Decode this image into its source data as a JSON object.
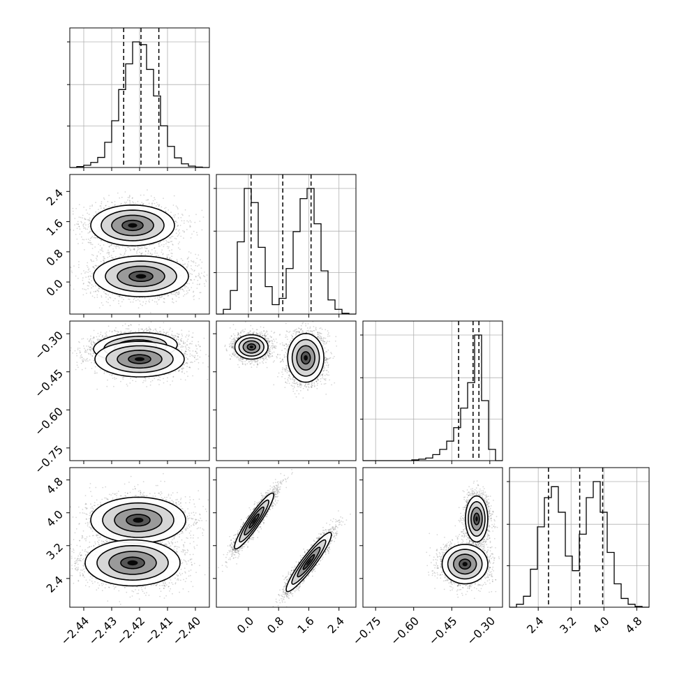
{
  "chart_data": {
    "type": "scatter",
    "layout": "corner",
    "parameters": [
      {
        "range": [
          -2.445,
          -2.395
        ],
        "ticks": [
          -2.44,
          -2.43,
          -2.42,
          -2.41,
          -2.4
        ],
        "tick_labels": [
          "−2.44",
          "−2.43",
          "−2.42",
          "−2.41",
          "−2.40"
        ],
        "quantiles": [
          -2.4257,
          -2.4195,
          -2.4131
        ],
        "histogram": {
          "bin_edges": [
            -2.445,
            -2.4425,
            -2.44,
            -2.4375,
            -2.435,
            -2.4325,
            -2.43,
            -2.4275,
            -2.425,
            -2.4225,
            -2.42,
            -2.4175,
            -2.415,
            -2.4125,
            -2.41,
            -2.4075,
            -2.405,
            -2.4025,
            -2.4,
            -2.3975,
            -2.395
          ],
          "counts": [
            0,
            2,
            5,
            11,
            22,
            55,
            102,
            170,
            226,
            274,
            268,
            214,
            156,
            91,
            46,
            21,
            8,
            3,
            1,
            0
          ]
        },
        "grid": true
      },
      {
        "range": [
          -0.85,
          2.85
        ],
        "ticks": [
          0.0,
          0.8,
          1.6,
          2.4
        ],
        "tick_labels": [
          "0.0",
          "0.8",
          "1.6",
          "2.4"
        ],
        "quantiles": [
          0.07,
          0.91,
          1.66
        ],
        "histogram": {
          "bin_edges": [
            -0.85,
            -0.665,
            -0.48,
            -0.295,
            -0.11,
            0.075,
            0.26,
            0.445,
            0.63,
            0.815,
            1.0,
            1.185,
            1.37,
            1.555,
            1.74,
            1.925,
            2.11,
            2.295,
            2.48,
            2.665,
            2.85
          ],
          "counts": [
            0,
            6,
            30,
            92,
            160,
            142,
            85,
            35,
            12,
            20,
            58,
            105,
            147,
            160,
            115,
            55,
            18,
            6,
            1,
            0
          ]
        },
        "grid": true
      },
      {
        "range": [
          -0.8,
          -0.25
        ],
        "ticks": [
          -0.75,
          -0.6,
          -0.45,
          -0.3
        ],
        "tick_labels": [
          "−0.75",
          "−0.60",
          "−0.45",
          "−0.30"
        ],
        "quantiles": [
          -0.423,
          -0.366,
          -0.343
        ],
        "histogram": {
          "bin_edges": [
            -0.8,
            -0.7725,
            -0.745,
            -0.7175,
            -0.69,
            -0.6625,
            -0.635,
            -0.6075,
            -0.58,
            -0.5525,
            -0.525,
            -0.4975,
            -0.47,
            -0.4425,
            -0.415,
            -0.3875,
            -0.36,
            -0.3325,
            -0.305,
            -0.2775,
            -0.25
          ],
          "counts": [
            0,
            0,
            0,
            0,
            0,
            0,
            0,
            2,
            4,
            7,
            16,
            30,
            52,
            88,
            140,
            208,
            335,
            160,
            30,
            0
          ]
        },
        "grid": true
      },
      {
        "range": [
          1.7,
          5.1
        ],
        "ticks": [
          2.4,
          3.2,
          4.0,
          4.8
        ],
        "tick_labels": [
          "2.4",
          "3.2",
          "4.0",
          "4.8"
        ],
        "quantiles": [
          2.65,
          3.41,
          3.97
        ],
        "histogram": {
          "bin_edges": [
            1.7,
            1.87,
            2.04,
            2.21,
            2.38,
            2.55,
            2.72,
            2.89,
            3.06,
            3.23,
            3.4,
            3.57,
            3.74,
            3.91,
            4.08,
            4.25,
            4.42,
            4.59,
            4.76,
            4.93,
            5.1
          ],
          "counts": [
            0,
            4,
            15,
            52,
            110,
            150,
            165,
            130,
            70,
            50,
            100,
            150,
            172,
            130,
            75,
            32,
            12,
            4,
            1,
            0
          ]
        },
        "grid": true
      }
    ],
    "pair_panels": [
      {
        "x": 0,
        "y": 1,
        "clusters": [
          {
            "mx": -2.4225,
            "my": 1.5,
            "sx": 0.0075,
            "sy": 0.27,
            "rho": 0.0,
            "n": 2400
          },
          {
            "mx": -2.4195,
            "my": 0.15,
            "sx": 0.0085,
            "sy": 0.27,
            "rho": 0.0,
            "n": 2400
          }
        ]
      },
      {
        "x": 0,
        "y": 2,
        "clusters": [
          {
            "mx": -2.4215,
            "my": -0.352,
            "sx": 0.0075,
            "sy": 0.028,
            "rho": 0.15,
            "n": 2600
          },
          {
            "mx": -2.42,
            "my": -0.4,
            "sx": 0.008,
            "sy": 0.035,
            "rho": 0.0,
            "n": 1600
          }
        ]
      },
      {
        "x": 1,
        "y": 2,
        "clusters": [
          {
            "mx": 0.08,
            "my": -0.352,
            "sx": 0.22,
            "sy": 0.024,
            "rho": 0.0,
            "n": 2400
          },
          {
            "mx": 1.52,
            "my": -0.395,
            "sx": 0.24,
            "sy": 0.048,
            "rho": 0.0,
            "n": 2400
          }
        ]
      },
      {
        "x": 0,
        "y": 3,
        "clusters": [
          {
            "mx": -2.4205,
            "my": 3.82,
            "sx": 0.0085,
            "sy": 0.28,
            "rho": 0.0,
            "n": 2400
          },
          {
            "mx": -2.4225,
            "my": 2.78,
            "sx": 0.0085,
            "sy": 0.28,
            "rho": 0.0,
            "n": 2400
          }
        ]
      },
      {
        "x": 1,
        "y": 3,
        "clusters": [
          {
            "mx": 0.15,
            "my": 3.8,
            "sx": 0.26,
            "sy": 0.34,
            "rho": 0.93,
            "n": 2400
          },
          {
            "mx": 1.6,
            "my": 2.8,
            "sx": 0.3,
            "sy": 0.36,
            "rho": 0.93,
            "n": 2400
          }
        ]
      },
      {
        "x": 2,
        "y": 3,
        "clusters": [
          {
            "mx": -0.352,
            "my": 3.85,
            "sx": 0.022,
            "sy": 0.28,
            "rho": 0.0,
            "n": 2400
          },
          {
            "mx": -0.398,
            "my": 2.75,
            "sx": 0.045,
            "sy": 0.24,
            "rho": 0.0,
            "n": 2400
          }
        ]
      }
    ],
    "contour_levels_sigma": [
      0.5,
      1.0,
      1.5,
      2.0
    ],
    "title": "",
    "xlabel": "",
    "ylabel": ""
  }
}
